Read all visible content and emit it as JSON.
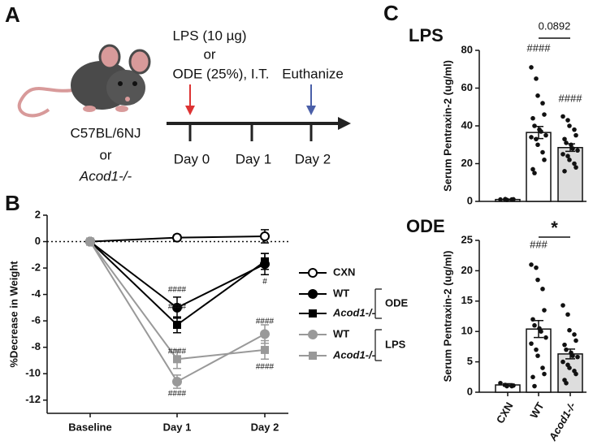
{
  "panel_labels": [
    "A",
    "B",
    "C"
  ],
  "panel_a": {
    "mouse_strain": "C57BL/6NJ",
    "or": "or",
    "knockout": "Acod1-/-",
    "treatment": [
      "LPS (10 µg)",
      "or",
      "ODE (25%), I.T."
    ],
    "endpoint": "Euthanize",
    "days": [
      "Day 0",
      "Day 1",
      "Day 2"
    ]
  },
  "chart_data": [
    {
      "type": "line",
      "ylabel": "%Decrease in Weight",
      "categories": [
        "Baseline",
        "Day 1",
        "Day 2"
      ],
      "ylim": [
        -13,
        2
      ],
      "yticks": [
        2,
        0,
        -2,
        -4,
        -6,
        -8,
        -10,
        -12
      ],
      "zero_line": true,
      "series": [
        {
          "name": "CXN",
          "color": "#000000",
          "marker": "open-circle",
          "values": [
            0,
            0.3,
            0.4
          ],
          "errors": [
            0,
            0.2,
            0.5
          ]
        },
        {
          "name": "WT",
          "group": "ODE",
          "color": "#000000",
          "marker": "circle",
          "values": [
            0,
            -5.0,
            -1.7
          ],
          "errors": [
            0,
            0.8,
            0.8
          ]
        },
        {
          "name": "Acod1-/-",
          "group": "ODE",
          "color": "#000000",
          "marker": "square",
          "values": [
            0,
            -6.3,
            -1.5
          ],
          "errors": [
            0,
            0.6,
            0.6
          ]
        },
        {
          "name": "WT",
          "group": "LPS",
          "color": "#999999",
          "marker": "circle",
          "values": [
            0,
            -10.6,
            -7.0
          ],
          "errors": [
            0,
            0.5,
            0.7
          ]
        },
        {
          "name": "Acod1-/-",
          "group": "LPS",
          "color": "#999999",
          "marker": "square",
          "values": [
            0,
            -8.9,
            -8.2
          ],
          "errors": [
            0,
            0.7,
            0.7
          ]
        }
      ],
      "annotations": [
        "####",
        "####",
        "####",
        "####",
        "#",
        "####",
        "####"
      ]
    },
    {
      "type": "bar",
      "title": "LPS",
      "ylabel": "Serum Pentraxin-2 (ug/ml)",
      "categories": [
        null,
        null,
        null
      ],
      "ylim": [
        0,
        80
      ],
      "yticks": [
        0,
        20,
        40,
        60,
        80
      ],
      "values": [
        1.0,
        36.5,
        28.5
      ],
      "errors": [
        0.2,
        3.2,
        2.0
      ],
      "colors": [
        "#ffffff",
        "#ffffff",
        "#dddddd"
      ],
      "points": [
        [
          1,
          1.2,
          0.8,
          1,
          1.1
        ],
        [
          71,
          65,
          56,
          52,
          46,
          44,
          40,
          38,
          37,
          35,
          34,
          33,
          30,
          26,
          22,
          17,
          15
        ],
        [
          45,
          43,
          40,
          38,
          35,
          33,
          31,
          30,
          28,
          27,
          25,
          24,
          22,
          20,
          18,
          16
        ]
      ],
      "annotations": [
        "####",
        "####"
      ],
      "comparison": "0.0892"
    },
    {
      "type": "bar",
      "title": "ODE",
      "ylabel": "Serum Pentraxin-2 (ug/ml)",
      "categories": [
        "CXN",
        "WT",
        "Acod1-/-"
      ],
      "ylim": [
        0,
        25
      ],
      "yticks": [
        0,
        5,
        10,
        15,
        20,
        25
      ],
      "values": [
        1.2,
        10.4,
        6.3
      ],
      "errors": [
        0.2,
        1.4,
        0.8
      ],
      "colors": [
        "#ffffff",
        "#ffffff",
        "#dddddd"
      ],
      "points": [
        [
          1.5,
          1.2,
          1,
          1,
          1.1
        ],
        [
          21,
          20.5,
          18.5,
          17,
          13.5,
          12,
          11,
          10.5,
          10,
          9,
          8,
          7,
          6,
          4,
          3,
          2.5,
          1
        ],
        [
          14.3,
          12.8,
          10.2,
          9.5,
          8.5,
          7.8,
          7,
          6.5,
          6,
          5.8,
          5,
          4.5,
          4,
          3.5,
          3,
          2,
          1.5
        ]
      ],
      "annotations": [
        "###"
      ],
      "comparison": "*"
    }
  ]
}
